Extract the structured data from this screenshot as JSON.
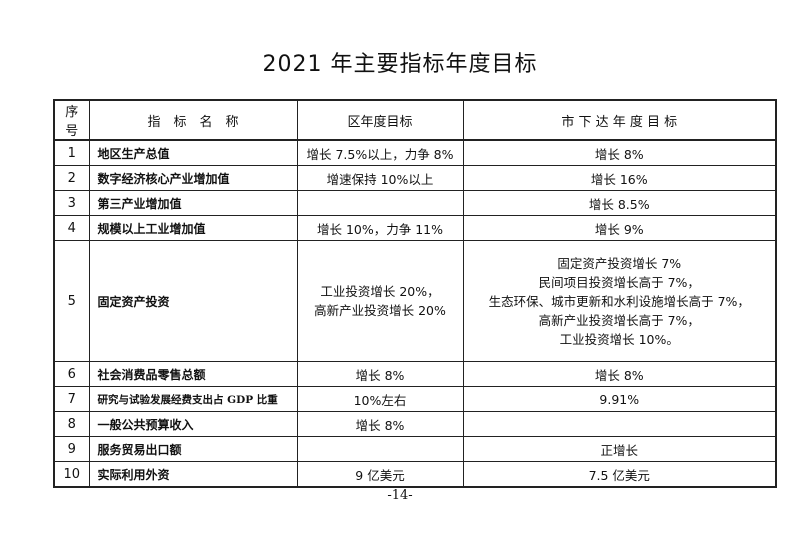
{
  "title": "2021 年主要指标年度目标",
  "table": {
    "headers": [
      "序号",
      "指　标　名　称",
      "区年度目标",
      "市 下 达 年 度 目 标"
    ],
    "rows": [
      {
        "no": "1",
        "name": "地区生产总值",
        "district": "增长 7.5%以上，力争 8%",
        "city": "增长 8%"
      },
      {
        "no": "2",
        "name": "数字经济核心产业增加值",
        "district": "增速保持 10%以上",
        "city": "增长 16%"
      },
      {
        "no": "3",
        "name": "第三产业增加值",
        "district": "",
        "city": "增长 8.5%"
      },
      {
        "no": "4",
        "name": "规模以上工业增加值",
        "district": "增长 10%，力争 11%",
        "city": "增长 9%"
      },
      {
        "no": "5",
        "name": "固定资产投资",
        "district_lines": [
          "工业投资增长 20%，",
          "高新产业投资增长 20%"
        ],
        "city_lines": [
          "固定资产投资增长 7%",
          "民间项目投资增长高于 7%，",
          "生态环保、城市更新和水利设施增长高于 7%，",
          "高新产业投资增长高于 7%，",
          "工业投资增长 10%。"
        ]
      },
      {
        "no": "6",
        "name": "社会消费品零售总额",
        "district": "增长 8%",
        "city": "增长 8%"
      },
      {
        "no": "7",
        "name": "研究与试验发展经费支出占 GDP 比重",
        "district": "10%左右",
        "city": "9.91%"
      },
      {
        "no": "8",
        "name": "一般公共预算收入",
        "district": "增长 8%",
        "city": ""
      },
      {
        "no": "9",
        "name": "服务贸易出口额",
        "district": "",
        "city": "正增长"
      },
      {
        "no": "10",
        "name": "实际利用外资",
        "district": "9 亿美元",
        "city": "7.5 亿美元"
      }
    ]
  },
  "page_number": "-14-"
}
